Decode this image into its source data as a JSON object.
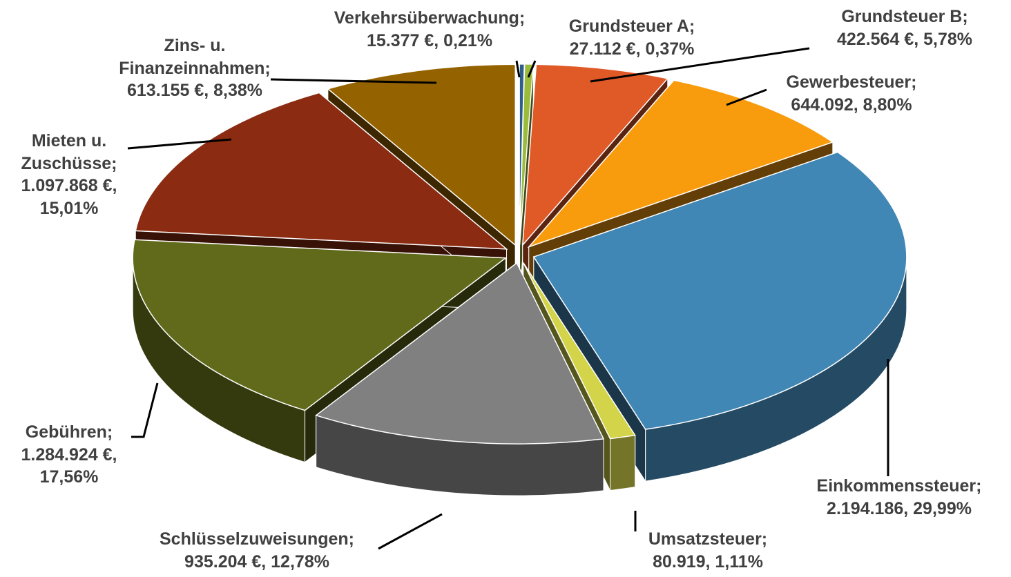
{
  "chart_data": {
    "type": "pie",
    "categories": [
      "Verkehrsüberwachung;",
      "Grundsteuer A;",
      "Grundsteuer B;",
      "Gewerbesteuer;",
      "Einkommenssteuer;",
      "Umsatzsteuer;",
      "Schlüsselzuweisungen;",
      "Gebühren;",
      "Mieten u. Zuschüsse;",
      "Zins- u. Finanzeinnahmen;"
    ],
    "values": [
      15377,
      27112,
      422564,
      644092,
      2194186,
      80919,
      935204,
      1284924,
      1097868,
      613155
    ],
    "value_labels": [
      "15.377 €, 0,21%",
      "27.112 €, 0,37%",
      "422.564 €, 5,78%",
      "644.092, 8,80%",
      "2.194.186, 29,99%",
      "80.919, 1,11%",
      "935.204 €, 12,78%",
      "1.284.924 €, 17,56%",
      "1.097.868 €, 15,01%",
      "613.155 €, 8,38%"
    ],
    "colors": [
      "#2e5f8a",
      "#9bbb3b",
      "#e05a28",
      "#f89c0e",
      "#4187b5",
      "#d4d44a",
      "#808080",
      "#61691a",
      "#8b2c12",
      "#956200"
    ]
  }
}
